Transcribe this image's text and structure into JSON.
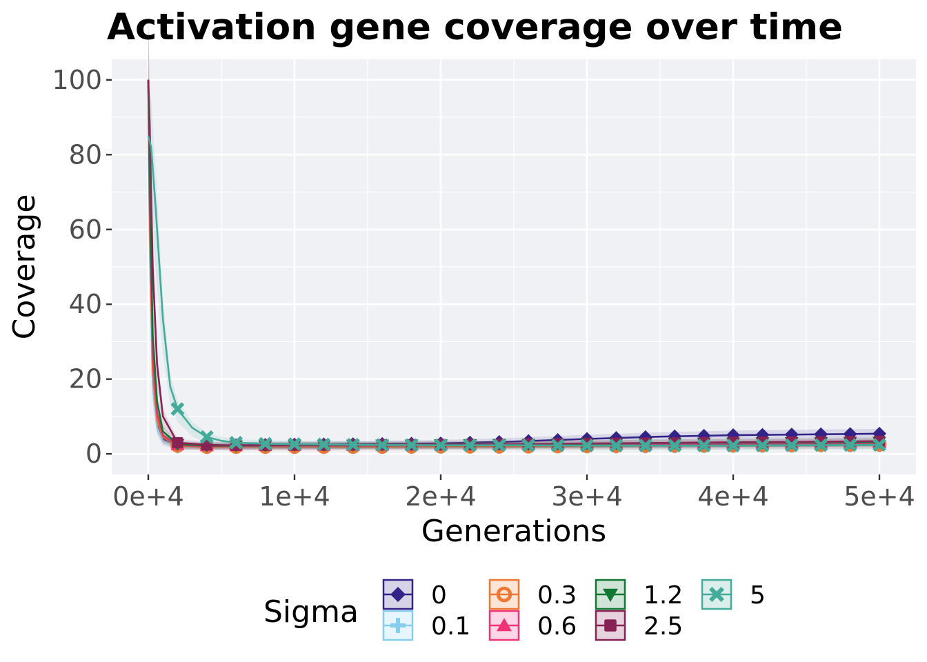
{
  "chart_data": {
    "type": "line",
    "title": "Activation gene coverage over time",
    "xlabel": "Generations",
    "ylabel": "Coverage",
    "xlim": [
      -2500,
      52500
    ],
    "ylim": [
      -5.5,
      105.5
    ],
    "x_ticks": [
      0,
      10000,
      20000,
      30000,
      40000,
      50000
    ],
    "x_tick_labels": [
      "0e+4",
      "1e+4",
      "2e+4",
      "3e+4",
      "4e+4",
      "5e+4"
    ],
    "y_ticks": [
      0,
      20,
      40,
      60,
      80,
      100
    ],
    "y_tick_labels": [
      "0",
      "20",
      "40",
      "60",
      "80",
      "100"
    ],
    "grid": true,
    "legend_title": "Sigma",
    "legend_position": "bottom",
    "series": [
      {
        "name": "0",
        "color": "#332288",
        "marker": "diamond",
        "x": [
          0,
          100,
          300,
          600,
          1000,
          2000,
          4000,
          6000,
          10000,
          15000,
          20000,
          25000,
          30000,
          35000,
          40000,
          45000,
          50000
        ],
        "values": [
          100,
          60,
          20,
          8,
          4,
          2.2,
          2.2,
          2.3,
          2.5,
          2.6,
          2.8,
          3.3,
          4.0,
          4.6,
          5.0,
          5.2,
          5.4
        ]
      },
      {
        "name": "0.1",
        "color": "#88ccee",
        "marker": "plus",
        "x": [
          0,
          100,
          300,
          600,
          1000,
          2000,
          4000,
          6000,
          10000,
          15000,
          20000,
          25000,
          30000,
          35000,
          40000,
          45000,
          50000
        ],
        "values": [
          100,
          55,
          18,
          7,
          3.5,
          2.0,
          1.8,
          1.8,
          1.8,
          1.8,
          1.9,
          1.9,
          2.0,
          2.0,
          2.1,
          2.2,
          2.3
        ]
      },
      {
        "name": "0.3",
        "color": "#ee7733",
        "marker": "circle",
        "x": [
          0,
          100,
          300,
          600,
          1000,
          2000,
          4000,
          6000,
          10000,
          15000,
          20000,
          25000,
          30000,
          35000,
          40000,
          45000,
          50000
        ],
        "values": [
          100,
          62,
          22,
          9,
          4.5,
          2.2,
          1.9,
          1.9,
          1.9,
          1.9,
          2.0,
          2.0,
          2.1,
          2.2,
          2.3,
          2.4,
          2.5
        ]
      },
      {
        "name": "0.6",
        "color": "#ee3377",
        "marker": "triangle",
        "x": [
          0,
          100,
          300,
          600,
          1000,
          2000,
          4000,
          6000,
          10000,
          15000,
          20000,
          25000,
          30000,
          35000,
          40000,
          45000,
          50000
        ],
        "values": [
          100,
          68,
          26,
          11,
          5,
          2.4,
          2.1,
          2.1,
          2.2,
          2.2,
          2.3,
          2.4,
          2.5,
          2.6,
          2.7,
          2.8,
          2.9
        ]
      },
      {
        "name": "1.2",
        "color": "#117733",
        "marker": "triangle-down",
        "x": [
          0,
          100,
          300,
          600,
          1000,
          2000,
          4000,
          6000,
          10000,
          15000,
          20000,
          25000,
          30000,
          35000,
          40000,
          45000,
          50000
        ],
        "values": [
          100,
          75,
          32,
          14,
          6,
          2.6,
          2.2,
          2.2,
          2.3,
          2.4,
          2.5,
          2.6,
          2.7,
          2.9,
          3.0,
          3.1,
          3.2
        ]
      },
      {
        "name": "2.5",
        "color": "#882255",
        "marker": "square",
        "x": [
          0,
          100,
          300,
          600,
          1000,
          2000,
          4000,
          6000,
          10000,
          15000,
          20000,
          25000,
          30000,
          35000,
          40000,
          45000,
          50000
        ],
        "values": [
          100,
          88,
          50,
          24,
          10,
          3.0,
          2.4,
          2.3,
          2.3,
          2.4,
          2.5,
          2.6,
          2.8,
          2.9,
          3.1,
          3.2,
          3.4
        ]
      },
      {
        "name": "5",
        "color": "#44aa99",
        "marker": "x",
        "x": [
          0,
          200,
          500,
          1000,
          1500,
          2000,
          3000,
          4000,
          5000,
          6000,
          8000,
          10000,
          15000,
          20000,
          25000,
          30000,
          35000,
          40000,
          45000,
          50000
        ],
        "values": [
          85,
          82,
          66,
          36,
          18,
          12,
          7,
          4.5,
          3.5,
          3.0,
          2.7,
          2.6,
          2.4,
          2.3,
          2.3,
          2.2,
          2.2,
          2.2,
          2.3,
          2.4
        ]
      }
    ]
  }
}
